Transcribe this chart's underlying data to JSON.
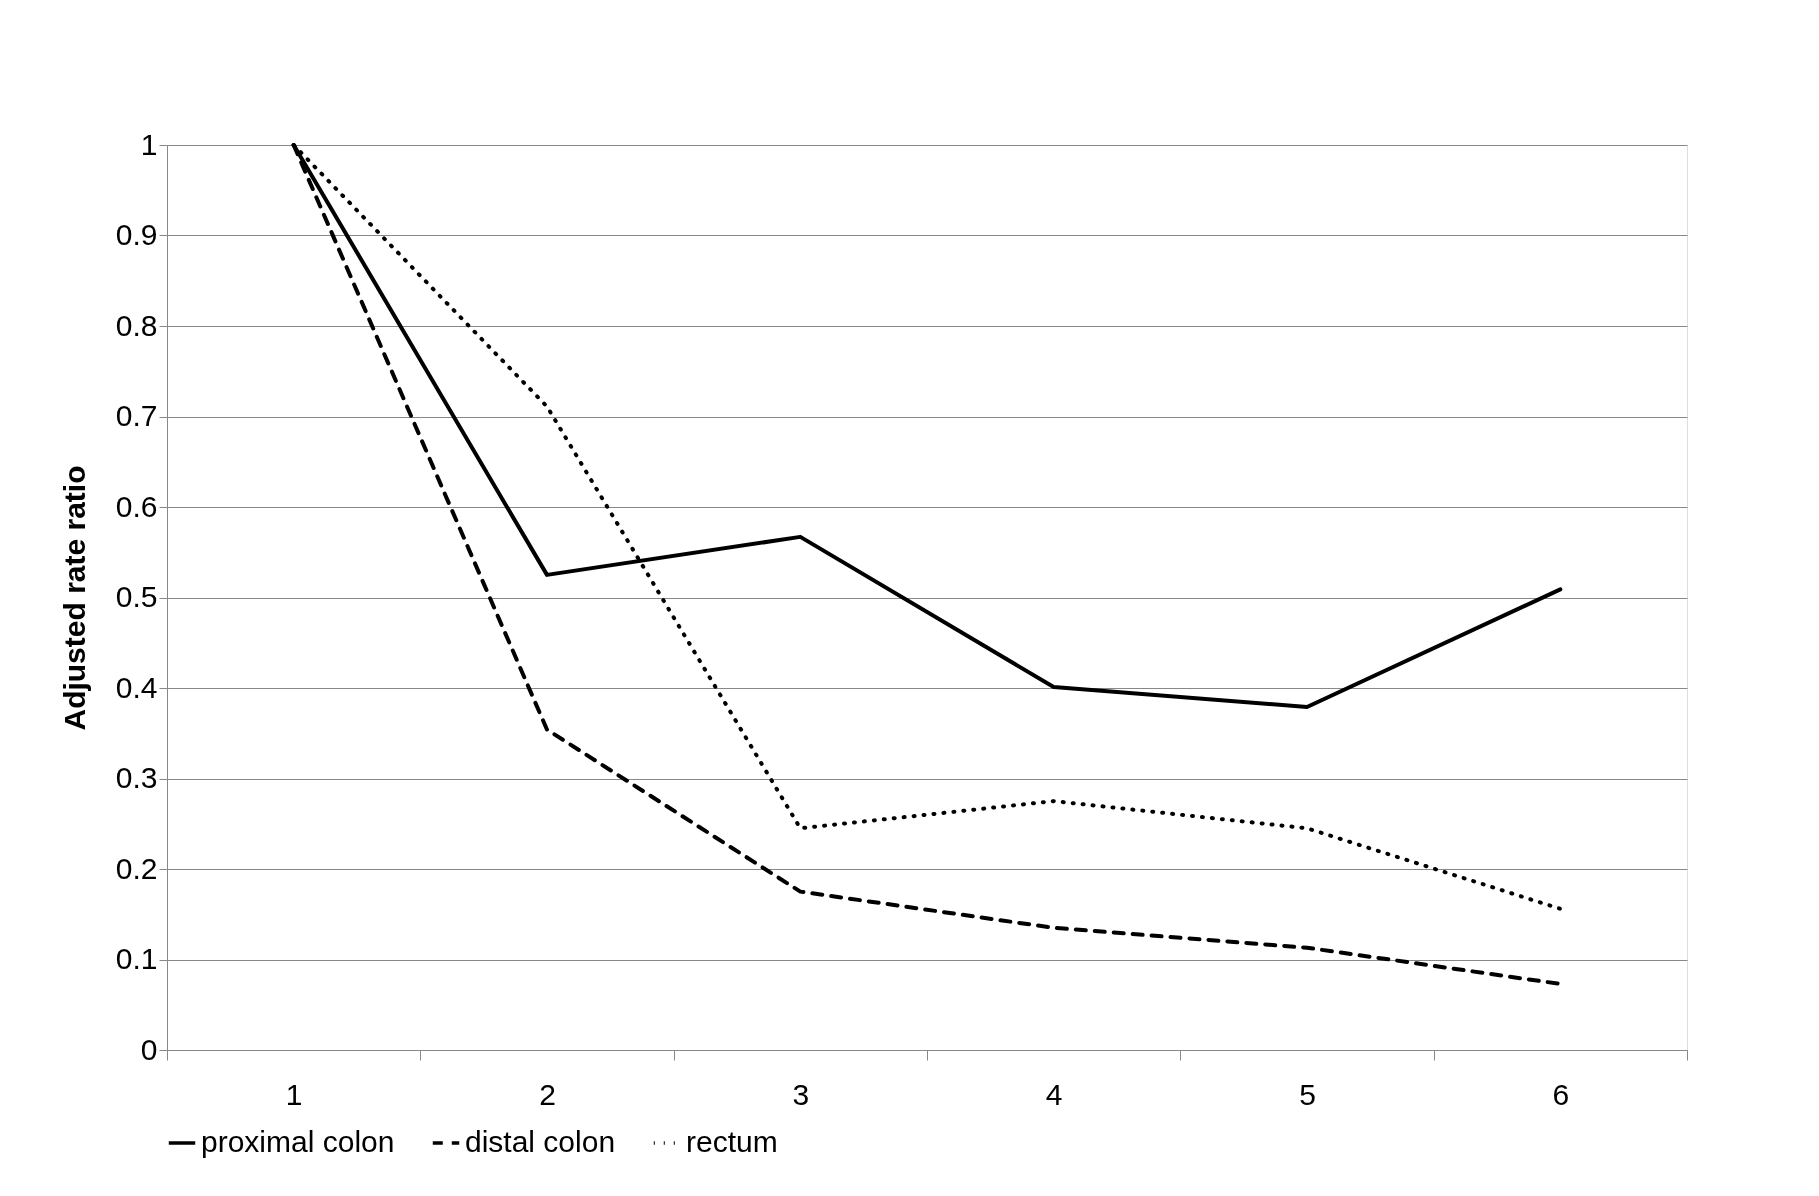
{
  "chart_data": {
    "type": "line",
    "ylabel": "Adjusted rate ratio",
    "categories": [
      "1",
      "2",
      "3",
      "4",
      "5",
      "6"
    ],
    "series": [
      {
        "name": "proximal colon",
        "color": "#000000",
        "line_style": "solid",
        "values": [
          1,
          0.525,
          0.567,
          0.401,
          0.379,
          0.509
        ]
      },
      {
        "name": "distal colon",
        "color": "#000000",
        "line_style": "dashed",
        "values": [
          1,
          0.354,
          0.175,
          0.135,
          0.113,
          0.073
        ]
      },
      {
        "name": "rectum",
        "color": "#000000",
        "line_style": "dotted",
        "values": [
          1,
          0.711,
          0.245,
          0.275,
          0.245,
          0.156
        ]
      }
    ],
    "ylim": [
      0,
      1
    ],
    "yticks": [
      0,
      0.1,
      0.2,
      0.3,
      0.4,
      0.5,
      0.6,
      0.7,
      0.8,
      0.9,
      1
    ],
    "grid": "y",
    "legend": "bottom",
    "marker": "none"
  }
}
